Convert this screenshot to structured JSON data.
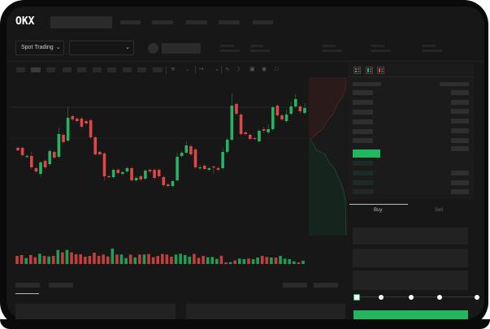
{
  "header": {
    "logo_text": "OKX",
    "market_select_label": "Spot Trading",
    "pair_select_value": ""
  },
  "orderbook": {
    "view_icons": [
      "orderbook-both-icon",
      "orderbook-bids-icon",
      "orderbook-asks-icon"
    ]
  },
  "trade": {
    "tabs": [
      {
        "label": "Buy",
        "active": true
      },
      {
        "label": "Sell",
        "active": false
      }
    ],
    "slider_percent": 0,
    "slider_stops": [
      0,
      25,
      50,
      75,
      100
    ]
  },
  "colors": {
    "up": "#26b461",
    "down": "#e04646",
    "accent": "#22b75f",
    "background": "#171717"
  },
  "chart_data": {
    "type": "candlestick",
    "axes_visible": false,
    "candles": [
      [
        118,
        120,
        113,
        115
      ],
      [
        118,
        120,
        107,
        109
      ],
      [
        107,
        110,
        105,
        108
      ],
      [
        108,
        113,
        92,
        94
      ],
      [
        93,
        95,
        87,
        89
      ],
      [
        86,
        102,
        82,
        100
      ],
      [
        102,
        104,
        92,
        94
      ],
      [
        98,
        116,
        96,
        114
      ],
      [
        113,
        115,
        104,
        106
      ],
      [
        107,
        143,
        105,
        135
      ],
      [
        134,
        136,
        123,
        125
      ],
      [
        127,
        168,
        125,
        155
      ],
      [
        157,
        159,
        151,
        153
      ],
      [
        154,
        156,
        149,
        151
      ],
      [
        154,
        156,
        142,
        144
      ],
      [
        151,
        153,
        146,
        148
      ],
      [
        152,
        154,
        129,
        131
      ],
      [
        131,
        133,
        108,
        110
      ],
      [
        113,
        115,
        108,
        110
      ],
      [
        111,
        113,
        78,
        83
      ],
      [
        83,
        85,
        81,
        82
      ],
      [
        82,
        93,
        80,
        91
      ],
      [
        91,
        93,
        85,
        87
      ],
      [
        86,
        90,
        84,
        88
      ],
      [
        89,
        95,
        87,
        93
      ],
      [
        93,
        95,
        76,
        78
      ],
      [
        78,
        83,
        76,
        81
      ],
      [
        83,
        85,
        77,
        79
      ],
      [
        80,
        92,
        78,
        90
      ],
      [
        91,
        93,
        87,
        89
      ],
      [
        91,
        93,
        79,
        81
      ],
      [
        91,
        93,
        81,
        83
      ],
      [
        82,
        84,
        70,
        72
      ],
      [
        73,
        75,
        69,
        71
      ],
      [
        71,
        79,
        69,
        77
      ],
      [
        78,
        112,
        76,
        107
      ],
      [
        108,
        114,
        106,
        112
      ],
      [
        112,
        126,
        110,
        121
      ],
      [
        120,
        122,
        108,
        110
      ],
      [
        116,
        118,
        92,
        94
      ],
      [
        93,
        97,
        90,
        94
      ],
      [
        96,
        98,
        90,
        92
      ],
      [
        91,
        95,
        89,
        93
      ],
      [
        95,
        96,
        86,
        94
      ],
      [
        93,
        95,
        89,
        91
      ],
      [
        93,
        118,
        91,
        113
      ],
      [
        113,
        130,
        111,
        128
      ],
      [
        128,
        185,
        126,
        170
      ],
      [
        172,
        174,
        158,
        160
      ],
      [
        159,
        161,
        133,
        135
      ],
      [
        137,
        139,
        133,
        135
      ],
      [
        134,
        136,
        127,
        129
      ],
      [
        130,
        132,
        128,
        129
      ],
      [
        126,
        141,
        124,
        139
      ],
      [
        141,
        144,
        137,
        139
      ],
      [
        137,
        147,
        135,
        141
      ],
      [
        141,
        170,
        139,
        168
      ],
      [
        170,
        172,
        156,
        158
      ],
      [
        158,
        160,
        151,
        153
      ],
      [
        151,
        165,
        149,
        159
      ],
      [
        160,
        175,
        158,
        169
      ],
      [
        169,
        184,
        167,
        178
      ],
      [
        169,
        171,
        160,
        163
      ],
      [
        161,
        173,
        159,
        167
      ]
    ],
    "volume": [
      {
        "v": 30,
        "up": false
      },
      {
        "v": 33,
        "up": false
      },
      {
        "v": 22,
        "up": true
      },
      {
        "v": 33,
        "up": false
      },
      {
        "v": 25,
        "up": false
      },
      {
        "v": 38,
        "up": true
      },
      {
        "v": 30,
        "up": false
      },
      {
        "v": 28,
        "up": true
      },
      {
        "v": 30,
        "up": false
      },
      {
        "v": 52,
        "up": true
      },
      {
        "v": 43,
        "up": false
      },
      {
        "v": 52,
        "up": true
      },
      {
        "v": 43,
        "up": false
      },
      {
        "v": 36,
        "up": false
      },
      {
        "v": 36,
        "up": false
      },
      {
        "v": 27,
        "up": false
      },
      {
        "v": 30,
        "up": false
      },
      {
        "v": 42,
        "up": false
      },
      {
        "v": 30,
        "up": false
      },
      {
        "v": 35,
        "up": false
      },
      {
        "v": 28,
        "up": false
      },
      {
        "v": 57,
        "up": true
      },
      {
        "v": 35,
        "up": false
      },
      {
        "v": 35,
        "up": true
      },
      {
        "v": 22,
        "up": true
      },
      {
        "v": 35,
        "up": false
      },
      {
        "v": 24,
        "up": true
      },
      {
        "v": 35,
        "up": false
      },
      {
        "v": 35,
        "up": true
      },
      {
        "v": 37,
        "up": false
      },
      {
        "v": 25,
        "up": false
      },
      {
        "v": 30,
        "up": false
      },
      {
        "v": 37,
        "up": false
      },
      {
        "v": 35,
        "up": false
      },
      {
        "v": 27,
        "up": false
      },
      {
        "v": 35,
        "up": true
      },
      {
        "v": 38,
        "up": true
      },
      {
        "v": 33,
        "up": true
      },
      {
        "v": 27,
        "up": true
      },
      {
        "v": 37,
        "up": false
      },
      {
        "v": 23,
        "up": false
      },
      {
        "v": 30,
        "up": false
      },
      {
        "v": 25,
        "up": true
      },
      {
        "v": 26,
        "up": true
      },
      {
        "v": 19,
        "up": true
      },
      {
        "v": 30,
        "up": false
      },
      {
        "v": 6,
        "up": false
      },
      {
        "v": 7,
        "up": true
      },
      {
        "v": 13,
        "up": false
      },
      {
        "v": 20,
        "up": true
      },
      {
        "v": 18,
        "up": true
      },
      {
        "v": 20,
        "up": false
      },
      {
        "v": 18,
        "up": true
      },
      {
        "v": 24,
        "up": true
      },
      {
        "v": 30,
        "up": false
      },
      {
        "v": 26,
        "up": false
      },
      {
        "v": 24,
        "up": true
      },
      {
        "v": 24,
        "up": false
      },
      {
        "v": 30,
        "up": true
      },
      {
        "v": 20,
        "up": true
      },
      {
        "v": 18,
        "up": true
      },
      {
        "v": 10,
        "up": true
      },
      {
        "v": 6,
        "up": false
      },
      {
        "v": 12,
        "up": true
      }
    ]
  }
}
